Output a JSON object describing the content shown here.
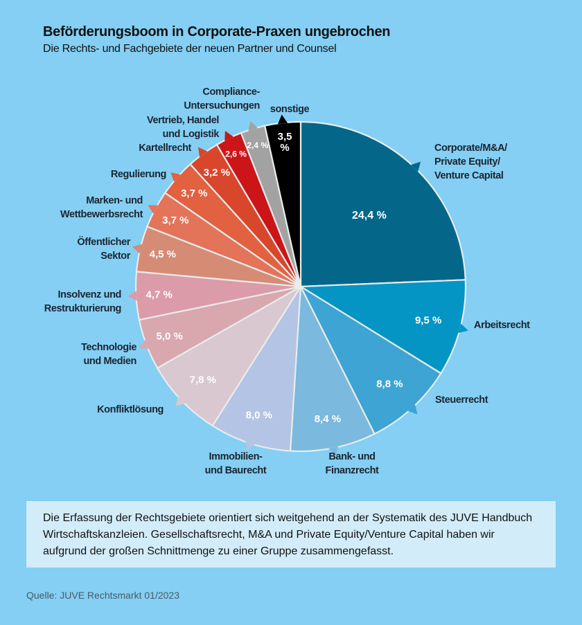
{
  "chart_data": {
    "type": "pie",
    "title": "Beförderungsboom in Corporate-Praxen ungebrochen",
    "subtitle": "Die Rechts- und Fachgebiete der neuen Partner und Counsel",
    "start": "12 o'clock, clockwise",
    "slices": [
      {
        "label": "Corporate/M&A/\nPrivate Equity/\nVenture Capital",
        "value": 24.4,
        "text": "24,4 %",
        "color": "#04678a"
      },
      {
        "label": "Arbeitsrecht",
        "value": 9.5,
        "text": "9,5 %",
        "color": "#0595c4"
      },
      {
        "label": "Steuerrecht",
        "value": 8.8,
        "text": "8,8 %",
        "color": "#3ea4d3"
      },
      {
        "label": "Bank- und\nFinanzrecht",
        "value": 8.4,
        "text": "8,4 %",
        "color": "#7bb9de"
      },
      {
        "label": "Immobilien-\nund Baurecht",
        "value": 8.0,
        "text": "8,0 %",
        "color": "#b4c4e4"
      },
      {
        "label": "Konfliktlösung",
        "value": 7.8,
        "text": "7,8 %",
        "color": "#d9c8cf"
      },
      {
        "label": "Technologie\nund Medien",
        "value": 5.0,
        "text": "5,0 %",
        "color": "#d9a7ae"
      },
      {
        "label": "Insolvenz und\nRestrukturierung",
        "value": 4.7,
        "text": "4,7 %",
        "color": "#dc9ba8"
      },
      {
        "label": "Öffentlicher\nSektor",
        "value": 4.5,
        "text": "4,5 %",
        "color": "#d68b74"
      },
      {
        "label": "Marken- und\nWettbewerbsrecht",
        "value": 3.7,
        "text": "3,7 %",
        "color": "#e3745a"
      },
      {
        "label": "Regulierung",
        "value": 3.7,
        "text": "3,7 %",
        "color": "#e26140"
      },
      {
        "label": "Kartellrecht",
        "value": 3.2,
        "text": "3,2 %",
        "color": "#d8462c"
      },
      {
        "label": "Vertrieb, Handel\nund Logistik",
        "value": 2.6,
        "text": "2,6 %",
        "color": "#cc1518"
      },
      {
        "label": "Compliance-\nUntersuchungen",
        "value": 2.4,
        "text": "2,4 %",
        "color": "#a2a2a2"
      },
      {
        "label": "sonstige",
        "value": 3.5,
        "text": "3,5\n%",
        "color": "#000000"
      }
    ]
  },
  "note": "Die Erfassung der Rechtsgebiete orientiert sich weitgehend an der Systematik des JUVE Handbuch Wirtschaftskanzleien. Gesellschaftsrecht, M&A und Private Equity/Venture Capital haben wir aufgrund der großen Schnittmenge zu einer Gruppe zusammengefasst.",
  "source": "Quelle: JUVE Rechtsmarkt 01/2023"
}
